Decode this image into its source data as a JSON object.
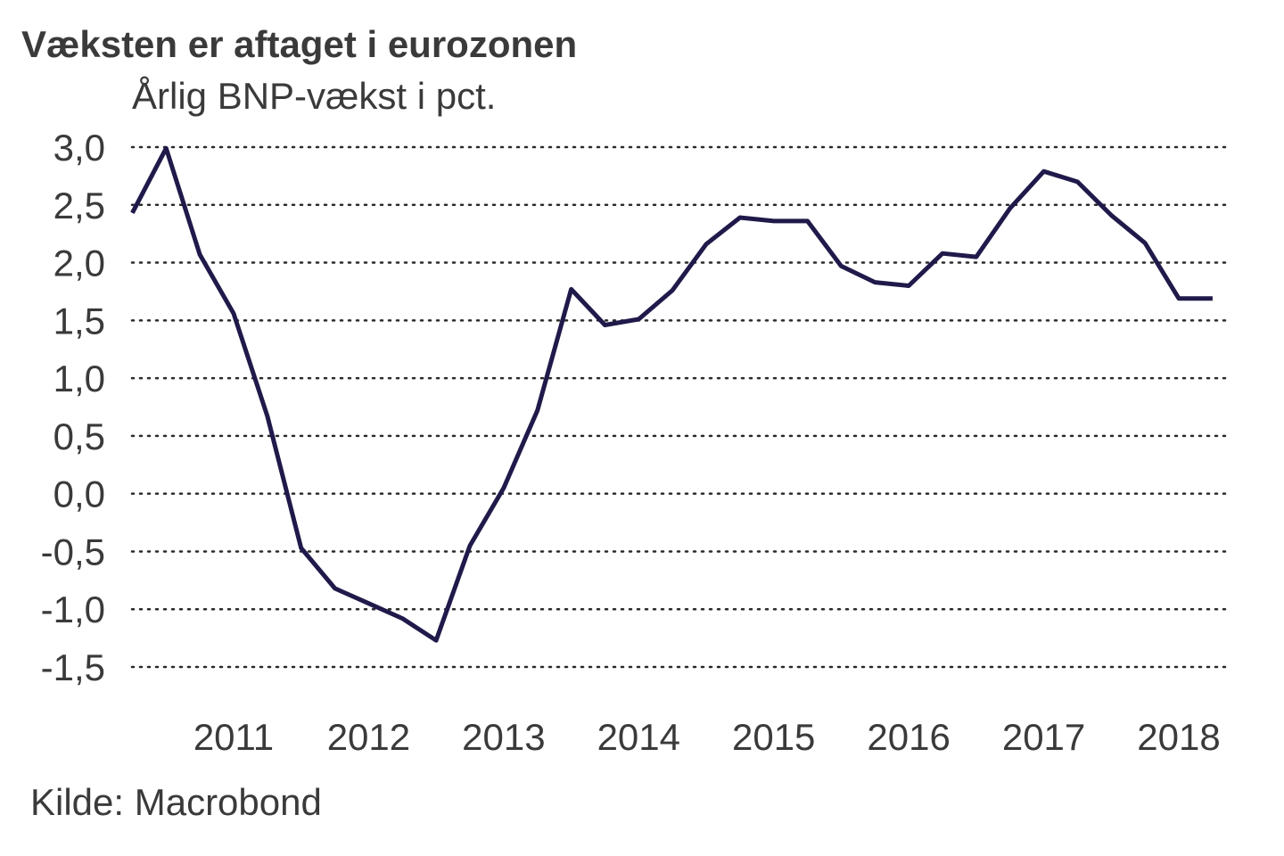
{
  "chart_data": {
    "type": "line",
    "title": "Væksten er aftaget i eurozonen",
    "subtitle": "Årlig BNP-vækst i pct.",
    "source": "Kilde: Macrobond",
    "xlabel": "",
    "ylabel": "Årlig BNP-vækst i pct.",
    "ylim": [
      -1.5,
      3.0
    ],
    "yticks": [
      3.0,
      2.5,
      2.0,
      1.5,
      1.0,
      0.5,
      0.0,
      -0.5,
      -1.0,
      -1.5
    ],
    "ytick_labels": [
      "3,0",
      "2,5",
      "2,0",
      "1,5",
      "1,0",
      "0,5",
      "0,0",
      "-0,5",
      "-1,0",
      "-1,5"
    ],
    "xticks": [
      2011,
      2012,
      2013,
      2014,
      2015,
      2016,
      2017,
      2018
    ],
    "xtick_labels": [
      "2011",
      "2012",
      "2013",
      "2014",
      "2015",
      "2016",
      "2017",
      "2018"
    ],
    "grid": "horizontal-dotted",
    "line_color": "#1f1a4a",
    "series": [
      {
        "name": "Årlig BNP-vækst",
        "x": [
          2010.25,
          2010.5,
          2010.75,
          2011.0,
          2011.25,
          2011.5,
          2011.75,
          2012.0,
          2012.25,
          2012.5,
          2012.75,
          2013.0,
          2013.25,
          2013.5,
          2013.75,
          2014.0,
          2014.25,
          2014.5,
          2014.75,
          2015.0,
          2015.25,
          2015.5,
          2015.75,
          2016.0,
          2016.25,
          2016.5,
          2016.75,
          2017.0,
          2017.25,
          2017.5,
          2017.75,
          2018.0,
          2018.25
        ],
        "values": [
          2.43,
          2.99,
          2.07,
          1.56,
          0.67,
          -0.47,
          -0.82,
          -0.95,
          -1.08,
          -1.27,
          -0.45,
          0.05,
          0.72,
          1.77,
          1.46,
          1.51,
          1.76,
          2.16,
          2.39,
          2.36,
          2.36,
          1.97,
          1.83,
          1.8,
          2.08,
          2.05,
          2.47,
          2.79,
          2.7,
          2.41,
          2.17,
          1.69,
          1.69
        ]
      }
    ]
  }
}
